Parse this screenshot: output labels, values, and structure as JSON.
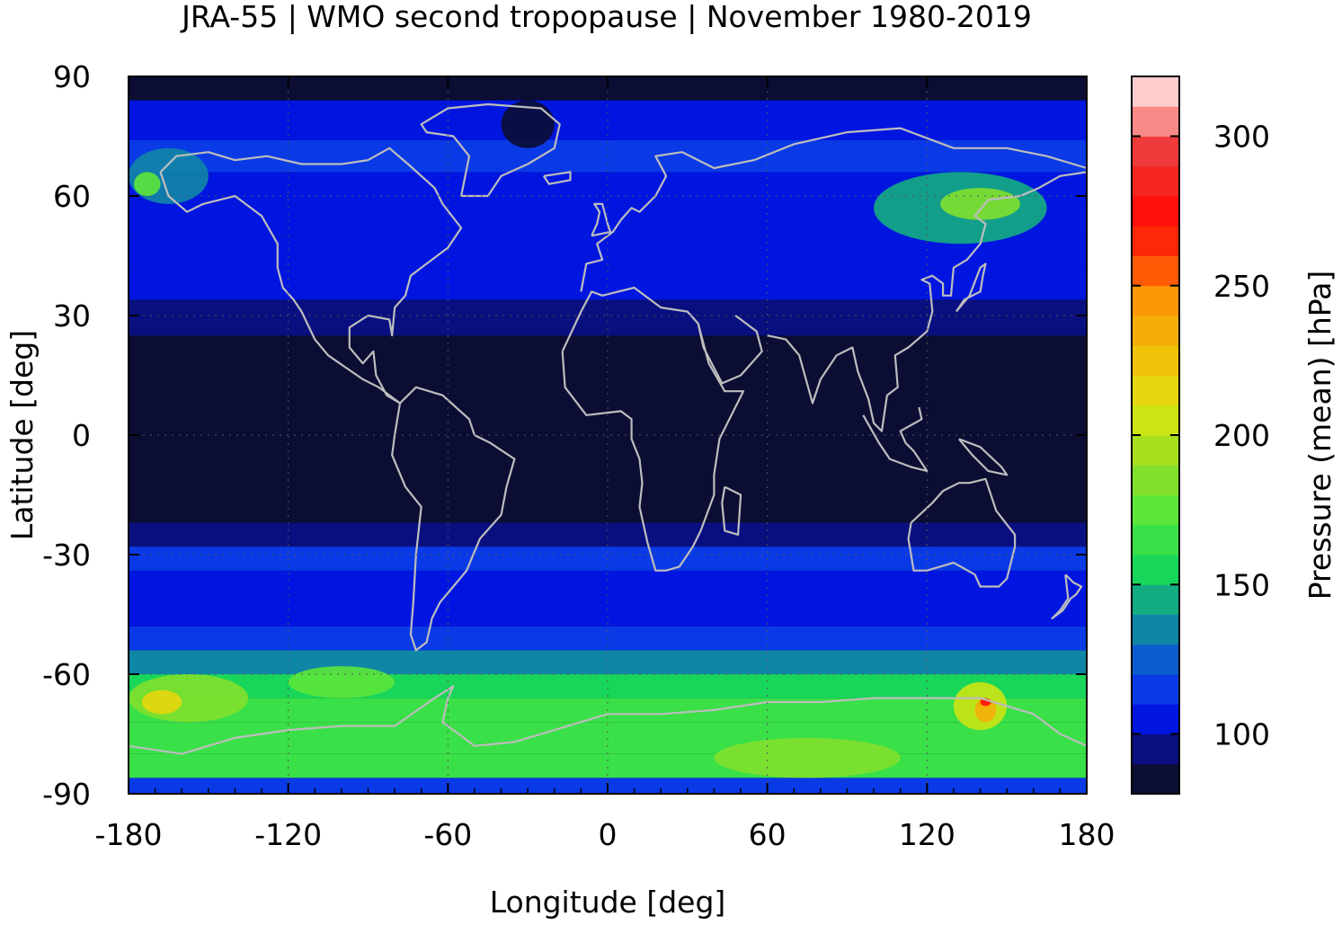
{
  "title": "JRA-55 | WMO second tropopause | November 1980-2019",
  "axes": {
    "xlabel": "Longitude [deg]",
    "ylabel": "Latitude [deg]",
    "xlim": [
      -180,
      180
    ],
    "ylim": [
      -90,
      90
    ],
    "xticks": [
      "-180",
      "-120",
      "-60",
      "0",
      "60",
      "120",
      "180"
    ],
    "yticks": [
      "90",
      "60",
      "30",
      "0",
      "-30",
      "-60",
      "-90"
    ]
  },
  "colorbar": {
    "label": "Pressure (mean) [hPa]",
    "range": [
      80,
      320
    ],
    "ticks": [
      "100",
      "150",
      "200",
      "250",
      "300"
    ],
    "levels": [
      {
        "from": 80,
        "to": 90,
        "color": "#0b0d33"
      },
      {
        "from": 90,
        "to": 100,
        "color": "#0a0f80"
      },
      {
        "from": 100,
        "to": 110,
        "color": "#0016e0"
      },
      {
        "from": 110,
        "to": 120,
        "color": "#0a3ae6"
      },
      {
        "from": 120,
        "to": 130,
        "color": "#0d5ccf"
      },
      {
        "from": 130,
        "to": 140,
        "color": "#0f86a6"
      },
      {
        "from": 140,
        "to": 150,
        "color": "#14ad82"
      },
      {
        "from": 150,
        "to": 160,
        "color": "#18d65a"
      },
      {
        "from": 160,
        "to": 170,
        "color": "#3ae048"
      },
      {
        "from": 170,
        "to": 180,
        "color": "#5ce63a"
      },
      {
        "from": 180,
        "to": 190,
        "color": "#82e02c"
      },
      {
        "from": 190,
        "to": 200,
        "color": "#a8e020"
      },
      {
        "from": 200,
        "to": 210,
        "color": "#cce414"
      },
      {
        "from": 210,
        "to": 220,
        "color": "#e6d60e"
      },
      {
        "from": 220,
        "to": 230,
        "color": "#f0c20a"
      },
      {
        "from": 230,
        "to": 240,
        "color": "#f5ad08"
      },
      {
        "from": 240,
        "to": 250,
        "color": "#fa9806"
      },
      {
        "from": 250,
        "to": 260,
        "color": "#ff5a05"
      },
      {
        "from": 260,
        "to": 270,
        "color": "#ff2806"
      },
      {
        "from": 270,
        "to": 280,
        "color": "#ff100a"
      },
      {
        "from": 280,
        "to": 290,
        "color": "#f52620"
      },
      {
        "from": 290,
        "to": 300,
        "color": "#ee3a3a"
      },
      {
        "from": 300,
        "to": 310,
        "color": "#f88a88"
      },
      {
        "from": 310,
        "to": 320,
        "color": "#ffcccc"
      }
    ]
  },
  "map": {
    "background_color": "#0b0d33",
    "coastline_color": "#bdbdbd",
    "latitude_bands": [
      {
        "lat_from": -90,
        "lat_to": -86,
        "value": 110
      },
      {
        "lat_from": -86,
        "lat_to": -80,
        "value": 165
      },
      {
        "lat_from": -80,
        "lat_to": -72,
        "value": 160
      },
      {
        "lat_from": -72,
        "lat_to": -66,
        "value": 165
      },
      {
        "lat_from": -66,
        "lat_to": -60,
        "value": 150
      },
      {
        "lat_from": -60,
        "lat_to": -54,
        "value": 130
      },
      {
        "lat_from": -54,
        "lat_to": -48,
        "value": 115
      },
      {
        "lat_from": -48,
        "lat_to": -40,
        "value": 105
      },
      {
        "lat_from": -40,
        "lat_to": -34,
        "value": 103
      },
      {
        "lat_from": -34,
        "lat_to": -28,
        "value": 112
      },
      {
        "lat_from": -28,
        "lat_to": -22,
        "value": 95
      },
      {
        "lat_from": -22,
        "lat_to": 25,
        "value": 85
      },
      {
        "lat_from": 25,
        "lat_to": 34,
        "value": 95
      },
      {
        "lat_from": 34,
        "lat_to": 42,
        "value": 103
      },
      {
        "lat_from": 42,
        "lat_to": 50,
        "value": 107
      },
      {
        "lat_from": 50,
        "lat_to": 58,
        "value": 103
      },
      {
        "lat_from": 58,
        "lat_to": 66,
        "value": 108
      },
      {
        "lat_from": 66,
        "lat_to": 74,
        "value": 115
      },
      {
        "lat_from": 74,
        "lat_to": 84,
        "value": 105
      },
      {
        "lat_from": 84,
        "lat_to": 90,
        "value": 85
      }
    ],
    "patches": [
      {
        "lon": [
          -180,
          -150
        ],
        "lat": [
          58,
          72
        ],
        "value": 130
      },
      {
        "lon": [
          -178,
          -168
        ],
        "lat": [
          60,
          66
        ],
        "value": 170
      },
      {
        "lon": [
          -180,
          -135
        ],
        "lat": [
          -72,
          -60
        ],
        "value": 185
      },
      {
        "lon": [
          -175,
          -160
        ],
        "lat": [
          -70,
          -64
        ],
        "value": 215
      },
      {
        "lon": [
          -120,
          -80
        ],
        "lat": [
          -66,
          -58
        ],
        "value": 175
      },
      {
        "lon": [
          100,
          165
        ],
        "lat": [
          48,
          66
        ],
        "value": 145
      },
      {
        "lon": [
          125,
          155
        ],
        "lat": [
          54,
          62
        ],
        "value": 185
      },
      {
        "lon": [
          130,
          150
        ],
        "lat": [
          -74,
          -62
        ],
        "value": 205
      },
      {
        "lon": [
          138,
          146
        ],
        "lat": [
          -72,
          -66
        ],
        "value": 235
      },
      {
        "lon": [
          140,
          144
        ],
        "lat": [
          -68,
          -66
        ],
        "value": 270
      },
      {
        "lon": [
          40,
          110
        ],
        "lat": [
          -86,
          -76
        ],
        "value": 180
      },
      {
        "lon": [
          -40,
          -20
        ],
        "lat": [
          72,
          84
        ],
        "value": 85
      }
    ]
  }
}
